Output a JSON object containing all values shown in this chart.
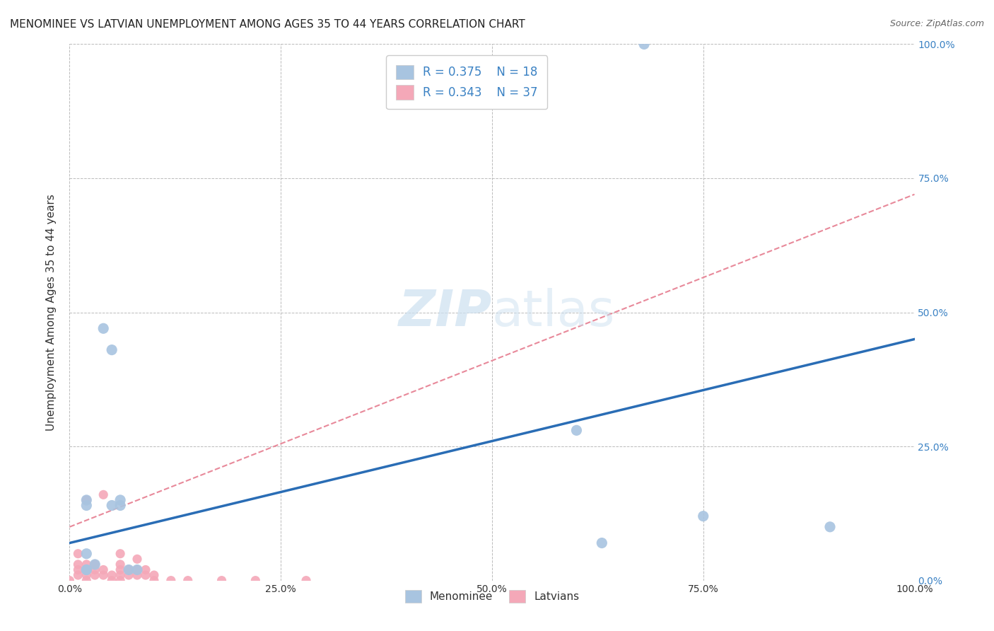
{
  "title": "MENOMINEE VS LATVIAN UNEMPLOYMENT AMONG AGES 35 TO 44 YEARS CORRELATION CHART",
  "source": "Source: ZipAtlas.com",
  "ylabel": "Unemployment Among Ages 35 to 44 years",
  "xlim": [
    0,
    1.0
  ],
  "ylim": [
    0,
    1.0
  ],
  "xticks": [
    0.0,
    0.25,
    0.5,
    0.75,
    1.0
  ],
  "yticks": [
    0.0,
    0.25,
    0.5,
    0.75,
    1.0
  ],
  "xticklabels": [
    "0.0%",
    "25.0%",
    "50.0%",
    "75.0%",
    "100.0%"
  ],
  "yticklabels": [
    "0.0%",
    "25.0%",
    "50.0%",
    "75.0%",
    "100.0%"
  ],
  "menominee_R": 0.375,
  "menominee_N": 18,
  "latvian_R": 0.343,
  "latvian_N": 37,
  "menominee_color": "#a8c4e0",
  "latvian_color": "#f4a8b8",
  "menominee_line_color": "#2a6db5",
  "latvian_line_color": "#e8899a",
  "legend_R_color": "#3b82c4",
  "background_color": "#ffffff",
  "grid_color": "#bbbbbb",
  "watermark_color": "#cce0f0",
  "menominee_x": [
    0.02,
    0.02,
    0.02,
    0.02,
    0.03,
    0.04,
    0.05,
    0.05,
    0.06,
    0.06,
    0.07,
    0.08,
    0.6,
    0.63,
    0.68,
    0.75,
    0.9,
    0.02
  ],
  "menominee_y": [
    0.02,
    0.05,
    0.14,
    0.15,
    0.03,
    0.47,
    0.43,
    0.14,
    0.14,
    0.15,
    0.02,
    0.02,
    0.28,
    0.07,
    1.0,
    0.12,
    0.1,
    0.02
  ],
  "latvian_x": [
    0.0,
    0.01,
    0.01,
    0.01,
    0.01,
    0.02,
    0.02,
    0.02,
    0.02,
    0.02,
    0.03,
    0.03,
    0.03,
    0.04,
    0.04,
    0.04,
    0.05,
    0.05,
    0.06,
    0.06,
    0.06,
    0.06,
    0.06,
    0.07,
    0.07,
    0.08,
    0.08,
    0.08,
    0.09,
    0.09,
    0.1,
    0.1,
    0.12,
    0.14,
    0.18,
    0.22,
    0.28
  ],
  "latvian_y": [
    0.0,
    0.01,
    0.02,
    0.03,
    0.05,
    0.0,
    0.01,
    0.02,
    0.03,
    0.15,
    0.01,
    0.02,
    0.03,
    0.01,
    0.02,
    0.16,
    0.0,
    0.01,
    0.0,
    0.01,
    0.02,
    0.03,
    0.05,
    0.01,
    0.02,
    0.01,
    0.02,
    0.04,
    0.01,
    0.02,
    0.0,
    0.01,
    0.0,
    0.0,
    0.0,
    0.0,
    0.0
  ],
  "menominee_line_x0": 0.0,
  "menominee_line_y0": 0.07,
  "menominee_line_x1": 1.0,
  "menominee_line_y1": 0.45,
  "latvian_line_x0": 0.0,
  "latvian_line_y0": 0.1,
  "latvian_line_x1": 1.0,
  "latvian_line_y1": 0.72,
  "menominee_marker_size": 120,
  "latvian_marker_size": 90
}
